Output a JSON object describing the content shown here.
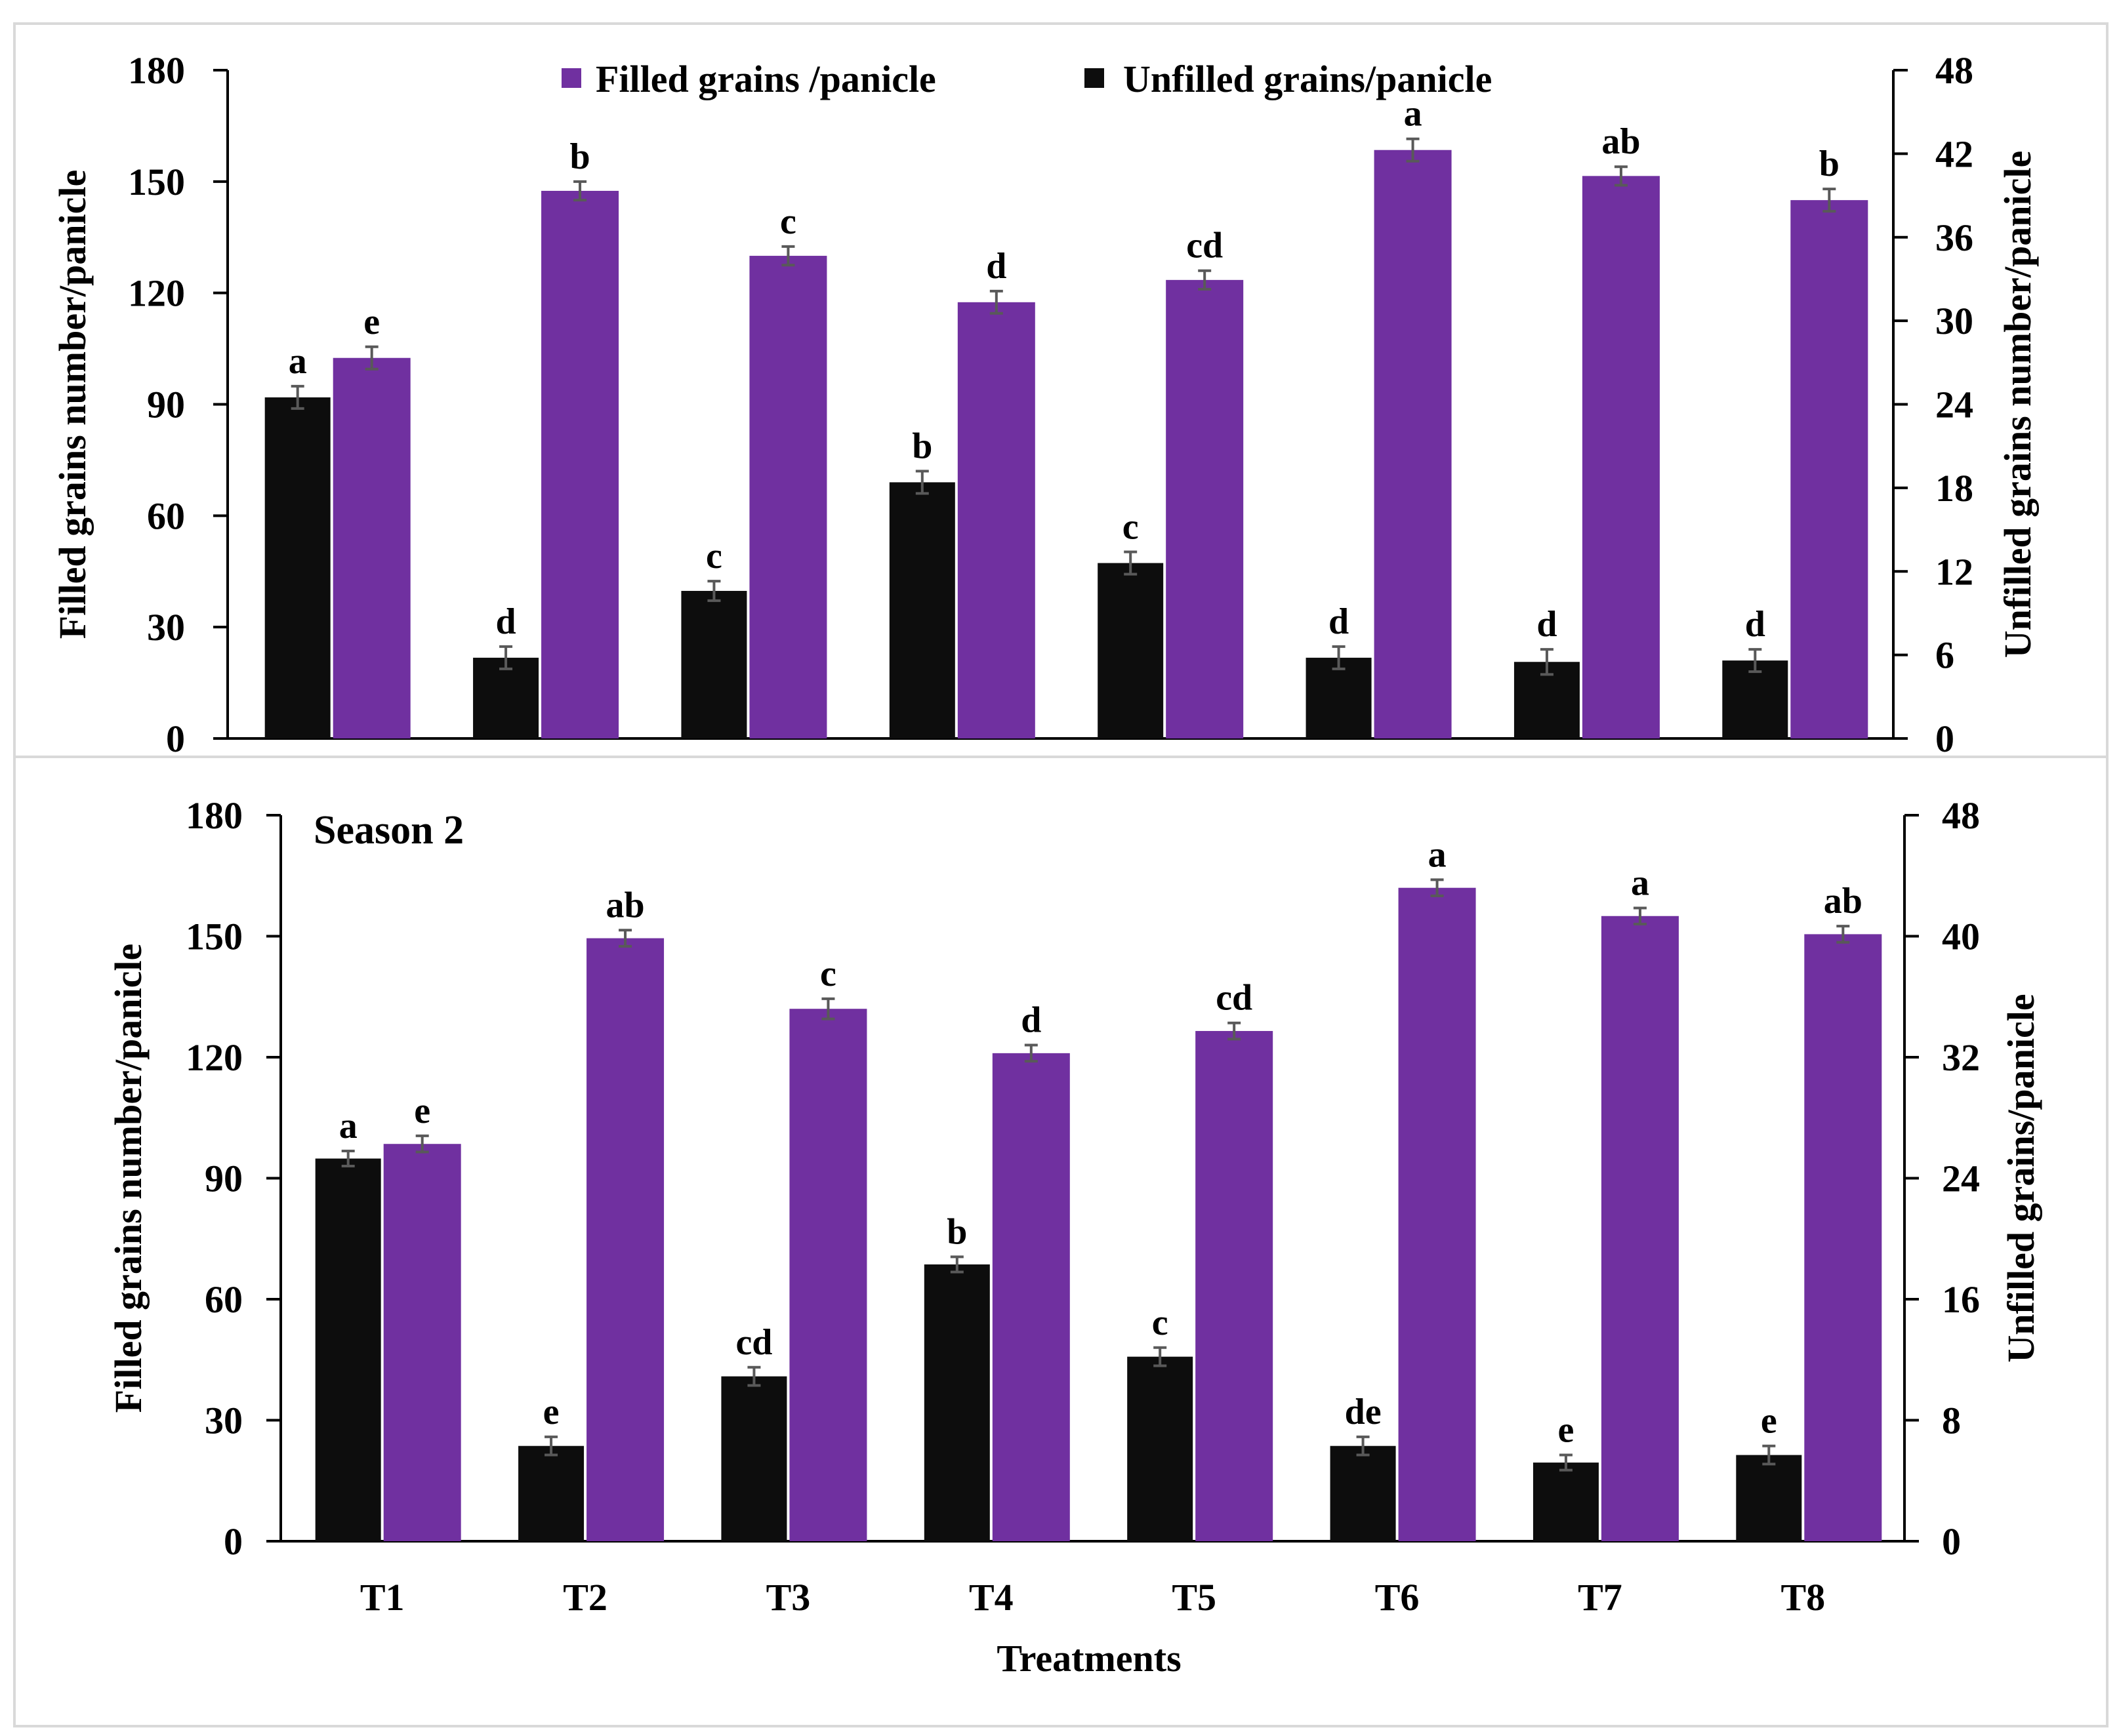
{
  "colors": {
    "filled": "#7030A0",
    "unfilled": "#0D0D0D",
    "error_bar": "#595959",
    "axis": "#000000",
    "panel_border": "#D9D9D9"
  },
  "legend": {
    "filled_label": "Filled grains /panicle",
    "unfilled_label": "Unfilled grains/panicle"
  },
  "x_axis_title": "Treatments",
  "chart_data": [
    {
      "type": "bar",
      "panel": "season-1",
      "title": "",
      "categories": [
        "T1",
        "T2",
        "T3",
        "T4",
        "T5",
        "T6",
        "T7",
        "T8"
      ],
      "show_categories": false,
      "ylabel_left": "Filled grains number/panicle",
      "ylabel_right": "Unfilled grains number/panicle",
      "ylim_left": [
        0,
        180
      ],
      "yticks_left": [
        0,
        30,
        60,
        90,
        120,
        150,
        180
      ],
      "ylim_right": [
        0,
        48
      ],
      "yticks_right": [
        0,
        6,
        12,
        18,
        24,
        30,
        36,
        42,
        48
      ],
      "series": [
        {
          "name": "Unfilled grains/panicle",
          "axis": "right",
          "values": [
            24.5,
            5.8,
            10.6,
            18.4,
            12.6,
            5.8,
            5.5,
            5.6
          ],
          "errors": [
            0.8,
            0.8,
            0.7,
            0.8,
            0.8,
            0.8,
            0.9,
            0.8
          ],
          "letters": [
            "a",
            "d",
            "c",
            "b",
            "c",
            "d",
            "d",
            "d"
          ]
        },
        {
          "name": "Filled grains /panicle",
          "axis": "left",
          "values": [
            102.5,
            147.5,
            130,
            117.5,
            123.5,
            158.5,
            151.5,
            145
          ],
          "errors": [
            3,
            2.5,
            2.5,
            3,
            2.5,
            3,
            2.5,
            3
          ],
          "letters": [
            "e",
            "b",
            "c",
            "d",
            "cd",
            "a",
            "ab",
            "b"
          ]
        }
      ]
    },
    {
      "type": "bar",
      "panel": "season-2",
      "title": "Season 2",
      "categories": [
        "T1",
        "T2",
        "T3",
        "T4",
        "T5",
        "T6",
        "T7",
        "T8"
      ],
      "show_categories": true,
      "xlabel": "Treatments",
      "ylabel_left": "Filled grains number/panicle",
      "ylabel_right": "Unfilled grains/panicle",
      "ylim_left": [
        0,
        180
      ],
      "yticks_left": [
        0,
        30,
        60,
        90,
        120,
        150,
        180
      ],
      "ylim_right": [
        0,
        48
      ],
      "yticks_right": [
        0,
        8,
        16,
        24,
        32,
        40,
        48
      ],
      "series": [
        {
          "name": "Unfilled grains/panicle",
          "axis": "right",
          "values": [
            25.3,
            6.3,
            10.9,
            18.3,
            12.2,
            6.3,
            5.2,
            5.7
          ],
          "errors": [
            0.5,
            0.6,
            0.6,
            0.5,
            0.6,
            0.6,
            0.5,
            0.6
          ],
          "letters": [
            "a",
            "e",
            "cd",
            "b",
            "c",
            "de",
            "e",
            "e"
          ]
        },
        {
          "name": "Filled grains /panicle",
          "axis": "left",
          "values": [
            98.5,
            149.5,
            132,
            121,
            126.5,
            162,
            155,
            150.5
          ],
          "errors": [
            2,
            2,
            2.5,
            2,
            2,
            2,
            2,
            2
          ],
          "letters": [
            "e",
            "ab",
            "c",
            "d",
            "cd",
            "a",
            "a",
            "ab"
          ]
        }
      ]
    }
  ]
}
